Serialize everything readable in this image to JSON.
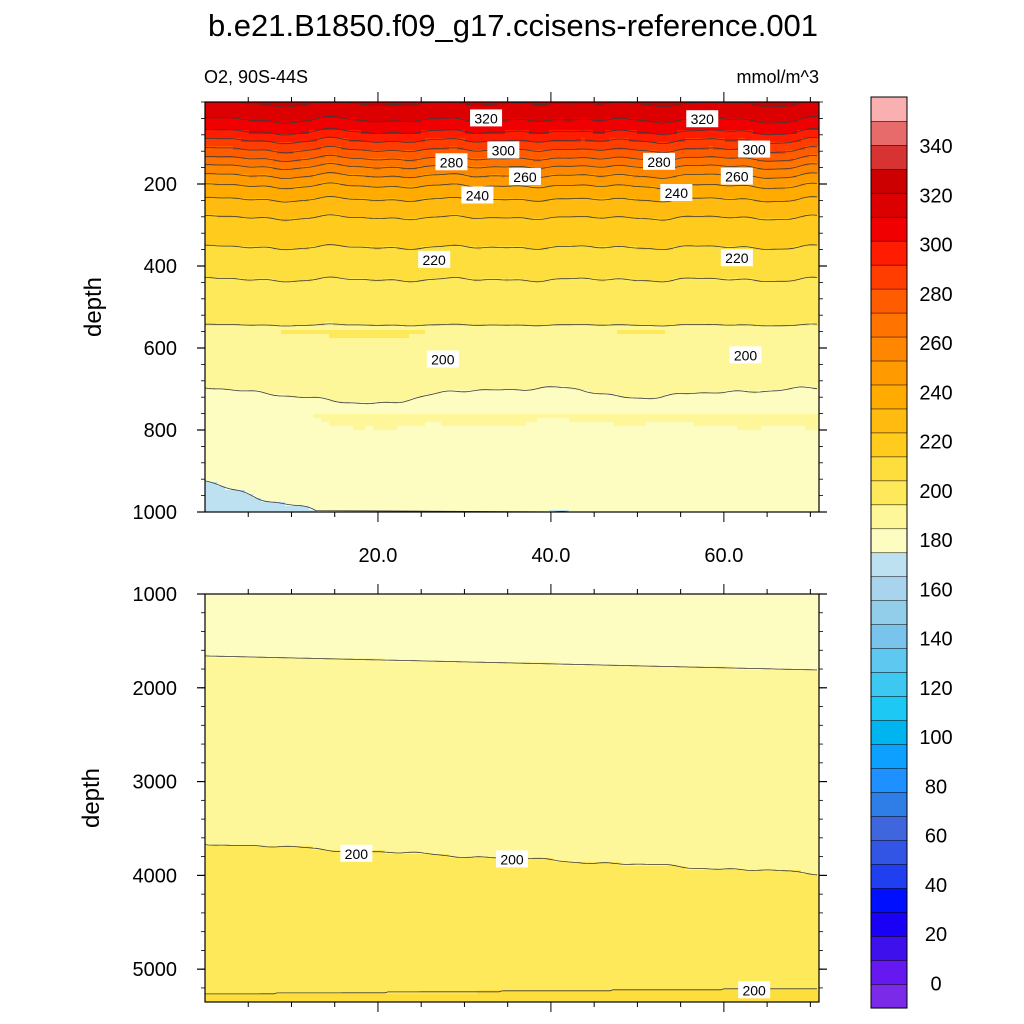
{
  "title": "b.e21.B1850.f09_g17.ccisens-reference.001",
  "subtitle_left": "O2, 90S-44S",
  "subtitle_right": "mmol/m^3",
  "colors": {
    "bg": "#ffffff",
    "axis": "#000000",
    "contour_line": "#3a3a3a"
  },
  "chart_data": [
    {
      "type": "heatmap",
      "panel": "upper",
      "ylabel": "depth",
      "ylim": [
        1000,
        0
      ],
      "xlim": [
        0,
        71
      ],
      "yticks": [
        "200",
        "400",
        "600",
        "800",
        "1000"
      ],
      "ytick_values": [
        200,
        400,
        600,
        800,
        1000
      ],
      "xticks": [
        "20.0",
        "40.0",
        "60.0"
      ],
      "xtick_values": [
        20,
        40,
        60
      ],
      "contour_labels": [
        {
          "text": "320",
          "x": 32.5,
          "y": 40
        },
        {
          "text": "320",
          "x": 57.5,
          "y": 42
        },
        {
          "text": "300",
          "x": 34.5,
          "y": 118
        },
        {
          "text": "300",
          "x": 63.5,
          "y": 116
        },
        {
          "text": "280",
          "x": 28.5,
          "y": 147
        },
        {
          "text": "280",
          "x": 52.5,
          "y": 146
        },
        {
          "text": "260",
          "x": 37.0,
          "y": 183
        },
        {
          "text": "260",
          "x": 61.5,
          "y": 182
        },
        {
          "text": "240",
          "x": 31.5,
          "y": 228
        },
        {
          "text": "240",
          "x": 54.5,
          "y": 222
        },
        {
          "text": "220",
          "x": 26.5,
          "y": 385
        },
        {
          "text": "220",
          "x": 61.5,
          "y": 381
        },
        {
          "text": "200",
          "x": 27.5,
          "y": 628
        },
        {
          "text": "200",
          "x": 62.5,
          "y": 618
        }
      ]
    },
    {
      "type": "heatmap",
      "panel": "lower",
      "ylabel": "depth",
      "ylim": [
        5350,
        1000
      ],
      "xlim": [
        0,
        71
      ],
      "yticks": [
        "1000",
        "2000",
        "3000",
        "4000",
        "5000"
      ],
      "ytick_values": [
        1000,
        2000,
        3000,
        4000,
        5000
      ],
      "contour_labels": [
        {
          "text": "200",
          "x": 17.5,
          "y": 3770
        },
        {
          "text": "200",
          "x": 35.5,
          "y": 3830
        },
        {
          "text": "200",
          "x": 63.5,
          "y": 5225
        }
      ]
    }
  ],
  "colorbar": {
    "labels": [
      "340",
      "320",
      "300",
      "280",
      "260",
      "240",
      "220",
      "200",
      "180",
      "160",
      "140",
      "120",
      "100",
      "80",
      "60",
      "40",
      "20",
      "0"
    ],
    "label_values": [
      340,
      320,
      300,
      280,
      260,
      240,
      220,
      200,
      180,
      160,
      140,
      120,
      100,
      80,
      60,
      40,
      20,
      0
    ],
    "levels": [
      -10,
      0,
      10,
      20,
      30,
      40,
      50,
      60,
      70,
      80,
      90,
      100,
      110,
      120,
      130,
      140,
      150,
      160,
      170,
      180,
      190,
      200,
      210,
      220,
      230,
      240,
      250,
      260,
      270,
      280,
      290,
      300,
      310,
      320,
      330,
      340,
      350,
      360
    ],
    "colors": [
      "#7b2be8",
      "#6618f0",
      "#3e10ec",
      "#1a00f5",
      "#0010ff",
      "#2040f0",
      "#3355e6",
      "#3f66dd",
      "#2f7ee8",
      "#1e90ff",
      "#0ea0ff",
      "#00b4f0",
      "#1ec8f5",
      "#3cc8f0",
      "#5ec8f0",
      "#79c4ec",
      "#92cdea",
      "#a8d4ee",
      "#bee1f1",
      "#fdfdc2",
      "#fef79a",
      "#fee95a",
      "#fede3c",
      "#ffcc1e",
      "#ffbb10",
      "#ffab00",
      "#ff9b00",
      "#ff8700",
      "#ff7300",
      "#ff5c00",
      "#ff3d00",
      "#ff1c00",
      "#f00000",
      "#dc0000",
      "#cc0000",
      "#d73333",
      "#e86b6b",
      "#fab0b0"
    ]
  }
}
